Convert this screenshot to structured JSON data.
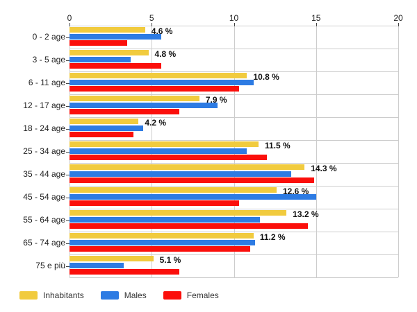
{
  "chart_data": {
    "type": "bar",
    "orientation": "horizontal",
    "title": "",
    "xlabel": "",
    "ylabel": "",
    "xlim": [
      0,
      20
    ],
    "x_ticks": [
      0,
      5,
      10,
      15,
      20
    ],
    "grid": true,
    "legend_position": "bottom-left",
    "categories": [
      "0 - 2 age",
      "3 - 5 age",
      "6 - 11 age",
      "12 - 17 age",
      "18 - 24 age",
      "25 - 34 age",
      "35 - 44 age",
      "45 - 54 age",
      "55 - 64 age",
      "65 - 74 age",
      "75 e più"
    ],
    "series": [
      {
        "name": "Inhabitants",
        "color": "#F1CB3E",
        "values": [
          4.6,
          4.8,
          10.8,
          7.9,
          4.2,
          11.5,
          14.3,
          12.6,
          13.2,
          11.2,
          5.1
        ]
      },
      {
        "name": "Males",
        "color": "#2D7BE3",
        "values": [
          5.6,
          3.7,
          11.2,
          9.0,
          4.5,
          10.8,
          13.5,
          15.0,
          11.6,
          11.3,
          3.3
        ]
      },
      {
        "name": "Females",
        "color": "#FB0F0B",
        "values": [
          3.5,
          5.6,
          10.3,
          6.7,
          3.9,
          12.0,
          14.9,
          10.3,
          14.5,
          11.0,
          6.7
        ]
      }
    ],
    "value_labels": [
      "4.6 %",
      "4.8 %",
      "10.8 %",
      "7.9 %",
      "4.2 %",
      "11.5 %",
      "14.3 %",
      "12.6 %",
      "13.2 %",
      "11.2 %",
      "5.1 %"
    ],
    "value_label_series": "Inhabitants",
    "colors": {
      "grid": "#cccccc",
      "tick": "#444444",
      "axis_text": "#222222",
      "value_text": "#111111",
      "legend_text": "#333333",
      "background": "#ffffff"
    }
  }
}
